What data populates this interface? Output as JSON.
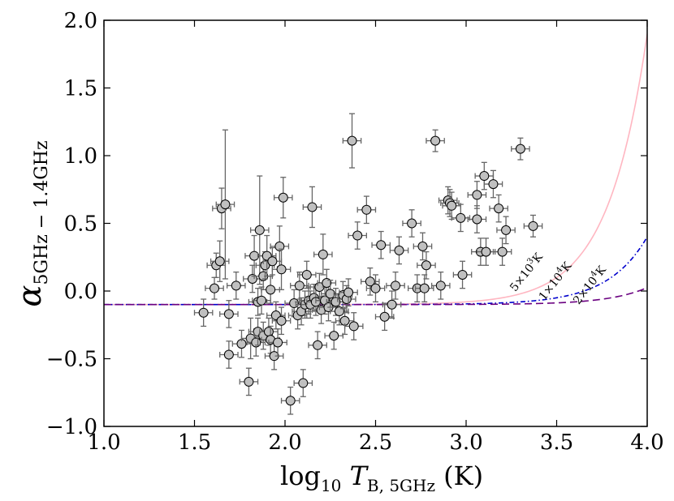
{
  "chart_data": {
    "type": "scatter",
    "title": "",
    "xlabel_main": "log",
    "xlabel_sub": "10",
    "xlabel_var": "T",
    "xlabel_var_sub": "B, 5GHz",
    "xlabel_unit": "(K)",
    "ylabel_main": "α",
    "ylabel_sub": "5GHz − 1.4GHz",
    "xlim": [
      1.0,
      4.0
    ],
    "ylim": [
      -1.0,
      2.0
    ],
    "xticks": [
      1.0,
      1.5,
      2.0,
      2.5,
      3.0,
      3.5,
      4.0
    ],
    "xtick_labels": [
      "1.0",
      "1.5",
      "2.0",
      "2.5",
      "3.0",
      "3.5",
      "4.0"
    ],
    "yticks": [
      -1.0,
      -0.5,
      0.0,
      0.5,
      1.0,
      1.5,
      2.0
    ],
    "ytick_labels": [
      "−1.0",
      "−0.5",
      "0.0",
      "0.5",
      "1.0",
      "1.5",
      "2.0"
    ],
    "grid": false,
    "curves": [
      {
        "name": "5e3",
        "label_base": "5×10",
        "label_exp": "3",
        "label_unit": "K",
        "T": 5000,
        "color": "#ffb6c1",
        "dash": "solid"
      },
      {
        "name": "1e4",
        "label_base": "1×10",
        "label_exp": "4",
        "label_unit": "K",
        "T": 10000,
        "color": "#0000cc",
        "dash": "dashdot"
      },
      {
        "name": "2e4",
        "label_base": "2×10",
        "label_exp": "4",
        "label_unit": "K",
        "T": 20000,
        "color": "#6a0080",
        "dash": "dashed"
      }
    ],
    "curve_model": {
      "alpha_base": -0.1
    },
    "points": [
      {
        "x": 1.55,
        "y": -0.16,
        "xerr": 0.05,
        "yerr": 0.1
      },
      {
        "x": 1.61,
        "y": 0.02,
        "xerr": 0.05,
        "yerr": 0.08
      },
      {
        "x": 1.62,
        "y": 0.19,
        "xerr": 0.05,
        "yerr": 0.09
      },
      {
        "x": 1.64,
        "y": 0.22,
        "xerr": 0.05,
        "yerr": 0.15
      },
      {
        "x": 1.65,
        "y": 0.61,
        "xerr": 0.05,
        "yerr": 0.15
      },
      {
        "x": 1.67,
        "y": 0.64,
        "xerr": 0.05,
        "yerr": 0.55
      },
      {
        "x": 1.69,
        "y": -0.17,
        "xerr": 0.05,
        "yerr": 0.1
      },
      {
        "x": 1.69,
        "y": -0.47,
        "xerr": 0.05,
        "yerr": 0.1
      },
      {
        "x": 1.73,
        "y": 0.04,
        "xerr": 0.05,
        "yerr": 0.1
      },
      {
        "x": 1.76,
        "y": -0.39,
        "xerr": 0.05,
        "yerr": 0.1
      },
      {
        "x": 1.8,
        "y": -0.67,
        "xerr": 0.05,
        "yerr": 0.1
      },
      {
        "x": 1.81,
        "y": -0.35,
        "xerr": 0.05,
        "yerr": 0.15
      },
      {
        "x": 1.82,
        "y": 0.09,
        "xerr": 0.05,
        "yerr": 0.1
      },
      {
        "x": 1.83,
        "y": 0.26,
        "xerr": 0.05,
        "yerr": 0.15
      },
      {
        "x": 1.84,
        "y": -0.38,
        "xerr": 0.05,
        "yerr": 0.1
      },
      {
        "x": 1.85,
        "y": -0.3,
        "xerr": 0.05,
        "yerr": 0.1
      },
      {
        "x": 1.85,
        "y": -0.08,
        "xerr": 0.05,
        "yerr": 0.1
      },
      {
        "x": 1.86,
        "y": 0.45,
        "xerr": 0.05,
        "yerr": 0.4
      },
      {
        "x": 1.87,
        "y": -0.07,
        "xerr": 0.05,
        "yerr": 0.1
      },
      {
        "x": 1.88,
        "y": -0.33,
        "xerr": 0.05,
        "yerr": 0.1
      },
      {
        "x": 1.88,
        "y": 0.11,
        "xerr": 0.05,
        "yerr": 0.1
      },
      {
        "x": 1.89,
        "y": 0.19,
        "xerr": 0.05,
        "yerr": 0.1
      },
      {
        "x": 1.9,
        "y": 0.26,
        "xerr": 0.05,
        "yerr": 0.15
      },
      {
        "x": 1.91,
        "y": -0.3,
        "xerr": 0.05,
        "yerr": 0.1
      },
      {
        "x": 1.92,
        "y": -0.36,
        "xerr": 0.05,
        "yerr": 0.1
      },
      {
        "x": 1.92,
        "y": 0.01,
        "xerr": 0.05,
        "yerr": 0.1
      },
      {
        "x": 1.93,
        "y": 0.22,
        "xerr": 0.05,
        "yerr": 0.1
      },
      {
        "x": 1.94,
        "y": -0.48,
        "xerr": 0.05,
        "yerr": 0.1
      },
      {
        "x": 1.95,
        "y": -0.18,
        "xerr": 0.05,
        "yerr": 0.1
      },
      {
        "x": 1.96,
        "y": -0.38,
        "xerr": 0.05,
        "yerr": 0.1
      },
      {
        "x": 1.97,
        "y": 0.33,
        "xerr": 0.05,
        "yerr": 0.15
      },
      {
        "x": 1.98,
        "y": -0.22,
        "xerr": 0.05,
        "yerr": 0.1
      },
      {
        "x": 1.98,
        "y": 0.16,
        "xerr": 0.05,
        "yerr": 0.15
      },
      {
        "x": 1.99,
        "y": 0.69,
        "xerr": 0.05,
        "yerr": 0.15
      },
      {
        "x": 2.03,
        "y": -0.81,
        "xerr": 0.05,
        "yerr": 0.1
      },
      {
        "x": 2.05,
        "y": -0.09,
        "xerr": 0.05,
        "yerr": 0.1
      },
      {
        "x": 2.07,
        "y": -0.18,
        "xerr": 0.05,
        "yerr": 0.1
      },
      {
        "x": 2.08,
        "y": 0.04,
        "xerr": 0.05,
        "yerr": 0.1
      },
      {
        "x": 2.09,
        "y": -0.15,
        "xerr": 0.05,
        "yerr": 0.1
      },
      {
        "x": 2.1,
        "y": -0.68,
        "xerr": 0.05,
        "yerr": 0.1
      },
      {
        "x": 2.11,
        "y": -0.1,
        "xerr": 0.05,
        "yerr": 0.1
      },
      {
        "x": 2.12,
        "y": 0.12,
        "xerr": 0.05,
        "yerr": 0.1
      },
      {
        "x": 2.13,
        "y": -0.07,
        "xerr": 0.05,
        "yerr": 0.1
      },
      {
        "x": 2.14,
        "y": -0.1,
        "xerr": 0.05,
        "yerr": 0.1
      },
      {
        "x": 2.15,
        "y": 0.62,
        "xerr": 0.05,
        "yerr": 0.15
      },
      {
        "x": 2.16,
        "y": -0.05,
        "xerr": 0.05,
        "yerr": 0.1
      },
      {
        "x": 2.17,
        "y": -0.08,
        "xerr": 0.05,
        "yerr": 0.1
      },
      {
        "x": 2.18,
        "y": -0.4,
        "xerr": 0.05,
        "yerr": 0.1
      },
      {
        "x": 2.19,
        "y": 0.03,
        "xerr": 0.05,
        "yerr": 0.1
      },
      {
        "x": 2.2,
        "y": -0.14,
        "xerr": 0.05,
        "yerr": 0.1
      },
      {
        "x": 2.21,
        "y": 0.27,
        "xerr": 0.05,
        "yerr": 0.15
      },
      {
        "x": 2.22,
        "y": -0.07,
        "xerr": 0.05,
        "yerr": 0.1
      },
      {
        "x": 2.23,
        "y": 0.06,
        "xerr": 0.05,
        "yerr": 0.1
      },
      {
        "x": 2.24,
        "y": -0.12,
        "xerr": 0.05,
        "yerr": 0.1
      },
      {
        "x": 2.25,
        "y": -0.02,
        "xerr": 0.05,
        "yerr": 0.1
      },
      {
        "x": 2.27,
        "y": -0.33,
        "xerr": 0.05,
        "yerr": 0.1
      },
      {
        "x": 2.28,
        "y": -0.08,
        "xerr": 0.05,
        "yerr": 0.1
      },
      {
        "x": 2.3,
        "y": -0.15,
        "xerr": 0.05,
        "yerr": 0.1
      },
      {
        "x": 2.32,
        "y": -0.03,
        "xerr": 0.05,
        "yerr": 0.1
      },
      {
        "x": 2.33,
        "y": -0.22,
        "xerr": 0.05,
        "yerr": 0.1
      },
      {
        "x": 2.34,
        "y": -0.06,
        "xerr": 0.05,
        "yerr": 0.1
      },
      {
        "x": 2.35,
        "y": -0.01,
        "xerr": 0.05,
        "yerr": 0.1
      },
      {
        "x": 2.37,
        "y": 1.11,
        "xerr": 0.05,
        "yerr": 0.2
      },
      {
        "x": 2.38,
        "y": -0.26,
        "xerr": 0.05,
        "yerr": 0.1
      },
      {
        "x": 2.4,
        "y": 0.41,
        "xerr": 0.05,
        "yerr": 0.1
      },
      {
        "x": 2.45,
        "y": 0.6,
        "xerr": 0.05,
        "yerr": 0.1
      },
      {
        "x": 2.47,
        "y": 0.07,
        "xerr": 0.05,
        "yerr": 0.1
      },
      {
        "x": 2.5,
        "y": 0.02,
        "xerr": 0.05,
        "yerr": 0.1
      },
      {
        "x": 2.53,
        "y": 0.34,
        "xerr": 0.05,
        "yerr": 0.1
      },
      {
        "x": 2.55,
        "y": -0.19,
        "xerr": 0.05,
        "yerr": 0.1
      },
      {
        "x": 2.59,
        "y": -0.1,
        "xerr": 0.05,
        "yerr": 0.1
      },
      {
        "x": 2.61,
        "y": 0.04,
        "xerr": 0.05,
        "yerr": 0.1
      },
      {
        "x": 2.63,
        "y": 0.3,
        "xerr": 0.05,
        "yerr": 0.1
      },
      {
        "x": 2.7,
        "y": 0.5,
        "xerr": 0.05,
        "yerr": 0.1
      },
      {
        "x": 2.73,
        "y": 0.02,
        "xerr": 0.05,
        "yerr": 0.1
      },
      {
        "x": 2.76,
        "y": 0.33,
        "xerr": 0.05,
        "yerr": 0.1
      },
      {
        "x": 2.77,
        "y": 0.02,
        "xerr": 0.05,
        "yerr": 0.1
      },
      {
        "x": 2.78,
        "y": 0.19,
        "xerr": 0.05,
        "yerr": 0.1
      },
      {
        "x": 2.83,
        "y": 1.11,
        "xerr": 0.05,
        "yerr": 0.08
      },
      {
        "x": 2.86,
        "y": 0.04,
        "xerr": 0.05,
        "yerr": 0.1
      },
      {
        "x": 2.9,
        "y": 0.67,
        "xerr": 0.05,
        "yerr": 0.1
      },
      {
        "x": 2.91,
        "y": 0.65,
        "xerr": 0.05,
        "yerr": 0.1
      },
      {
        "x": 2.92,
        "y": 0.63,
        "xerr": 0.05,
        "yerr": 0.1
      },
      {
        "x": 2.97,
        "y": 0.54,
        "xerr": 0.05,
        "yerr": 0.1
      },
      {
        "x": 2.98,
        "y": 0.12,
        "xerr": 0.05,
        "yerr": 0.1
      },
      {
        "x": 3.06,
        "y": 0.71,
        "xerr": 0.05,
        "yerr": 0.1
      },
      {
        "x": 3.06,
        "y": 0.53,
        "xerr": 0.05,
        "yerr": 0.1
      },
      {
        "x": 3.08,
        "y": 0.29,
        "xerr": 0.05,
        "yerr": 0.1
      },
      {
        "x": 3.1,
        "y": 0.85,
        "xerr": 0.05,
        "yerr": 0.1
      },
      {
        "x": 3.11,
        "y": 0.29,
        "xerr": 0.05,
        "yerr": 0.1
      },
      {
        "x": 3.15,
        "y": 0.79,
        "xerr": 0.05,
        "yerr": 0.1
      },
      {
        "x": 3.18,
        "y": 0.61,
        "xerr": 0.05,
        "yerr": 0.1
      },
      {
        "x": 3.2,
        "y": 0.29,
        "xerr": 0.05,
        "yerr": 0.1
      },
      {
        "x": 3.22,
        "y": 0.45,
        "xerr": 0.05,
        "yerr": 0.1
      },
      {
        "x": 3.3,
        "y": 1.05,
        "xerr": 0.05,
        "yerr": 0.08
      },
      {
        "x": 3.37,
        "y": 0.48,
        "xerr": 0.05,
        "yerr": 0.08
      }
    ]
  }
}
